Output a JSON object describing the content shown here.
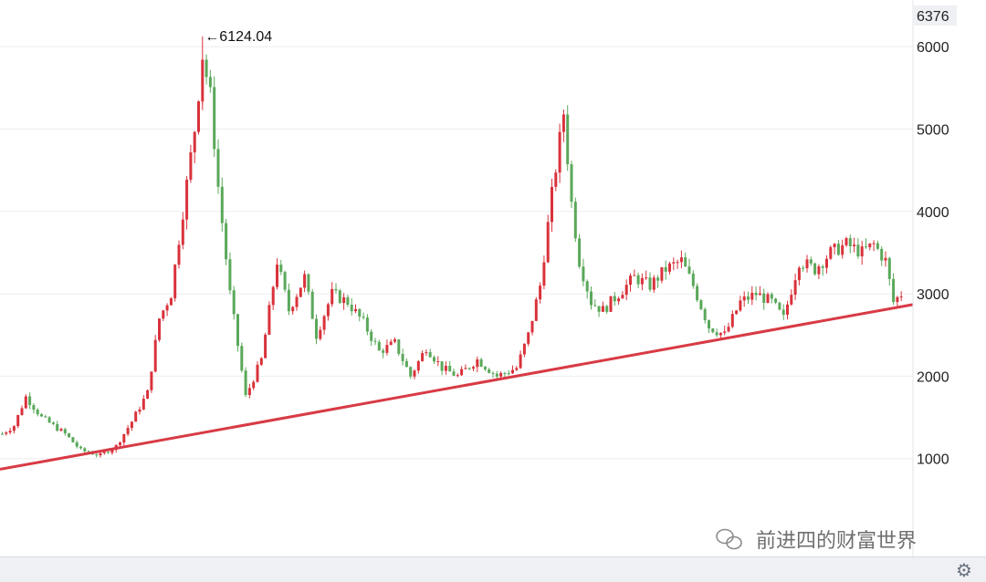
{
  "chart_data": {
    "type": "candlestick",
    "title": "",
    "xlabel": "",
    "ylabel": "",
    "ylim": [
      0,
      6376
    ],
    "y_ticks": [
      1000,
      2000,
      3000,
      4000,
      5000,
      6000
    ],
    "current_price_label": "6376",
    "peak_annotation": "←6124.04",
    "grid": true,
    "colors": {
      "up": "#d9323b",
      "down": "#5aa85a",
      "trendline": "#d83a45"
    },
    "trendline": {
      "start": {
        "bar": 0,
        "value": 870
      },
      "end": {
        "bar": 230,
        "value": 2870
      }
    },
    "profile": [
      [
        0,
        1300
      ],
      [
        3,
        1400
      ],
      [
        6,
        1750
      ],
      [
        10,
        1500
      ],
      [
        16,
        1300
      ],
      [
        20,
        1100
      ],
      [
        25,
        1040
      ],
      [
        29,
        1150
      ],
      [
        33,
        1450
      ],
      [
        37,
        1800
      ],
      [
        40,
        2700
      ],
      [
        43,
        3000
      ],
      [
        46,
        4000
      ],
      [
        49,
        5000
      ],
      [
        51,
        5900
      ],
      [
        53,
        5400
      ],
      [
        55,
        4300
      ],
      [
        58,
        3000
      ],
      [
        62,
        1750
      ],
      [
        66,
        2200
      ],
      [
        70,
        3400
      ],
      [
        73,
        2800
      ],
      [
        77,
        3200
      ],
      [
        80,
        2500
      ],
      [
        84,
        3000
      ],
      [
        88,
        2900
      ],
      [
        92,
        2650
      ],
      [
        96,
        2300
      ],
      [
        100,
        2400
      ],
      [
        104,
        2000
      ],
      [
        108,
        2350
      ],
      [
        112,
        2100
      ],
      [
        116,
        2000
      ],
      [
        121,
        2200
      ],
      [
        126,
        2000
      ],
      [
        131,
        2100
      ],
      [
        134,
        2500
      ],
      [
        137,
        3100
      ],
      [
        140,
        4200
      ],
      [
        143,
        5200
      ],
      [
        145,
        4100
      ],
      [
        147,
        3400
      ],
      [
        150,
        2900
      ],
      [
        153,
        2800
      ],
      [
        157,
        3000
      ],
      [
        161,
        3200
      ],
      [
        165,
        3100
      ],
      [
        169,
        3300
      ],
      [
        173,
        3400
      ],
      [
        176,
        3100
      ],
      [
        180,
        2600
      ],
      [
        184,
        2500
      ],
      [
        188,
        2900
      ],
      [
        192,
        3000
      ],
      [
        196,
        2900
      ],
      [
        199,
        2700
      ],
      [
        203,
        3400
      ],
      [
        207,
        3300
      ],
      [
        211,
        3500
      ],
      [
        215,
        3600
      ],
      [
        219,
        3500
      ],
      [
        222,
        3600
      ],
      [
        225,
        3400
      ],
      [
        227,
        2900
      ],
      [
        229,
        3000
      ]
    ]
  },
  "watermark": {
    "text": "前进四的财富世界",
    "icon": "wechat-icon"
  },
  "toolbar": {
    "settings_icon": "gear-icon",
    "settings_glyph": "⚙"
  }
}
